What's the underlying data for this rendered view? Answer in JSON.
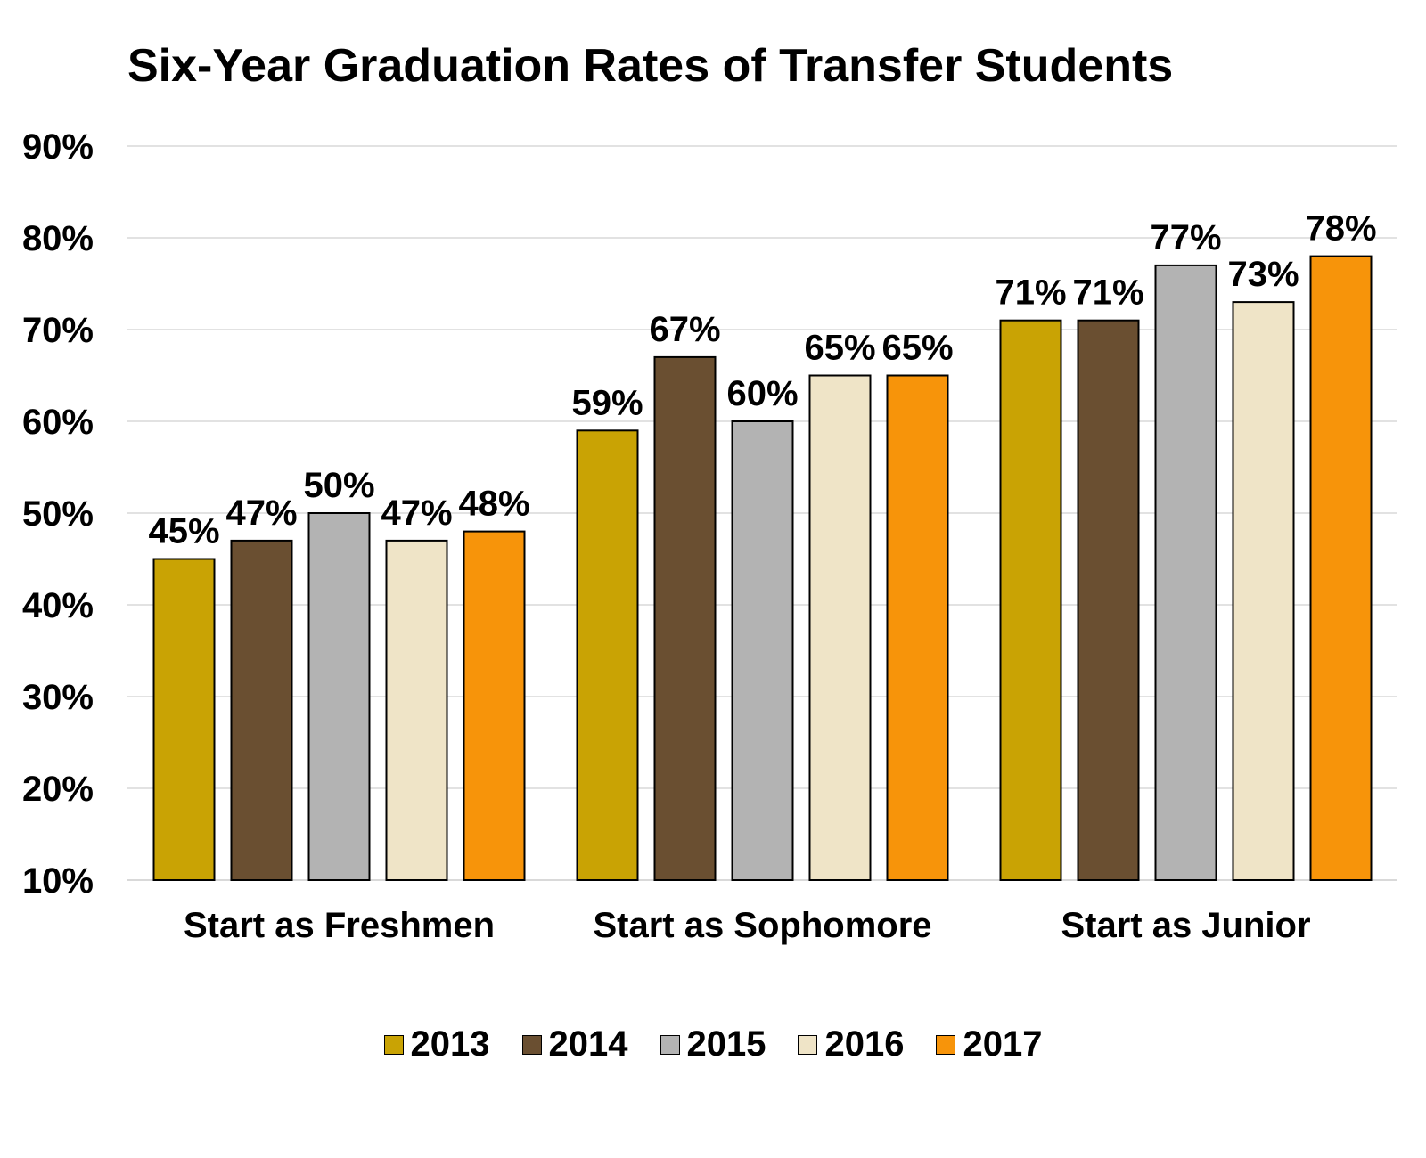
{
  "chart_data": {
    "type": "bar",
    "title": "Six-Year Graduation Rates of Transfer Students",
    "categories": [
      "Start as Freshmen",
      "Start as Sophomore",
      "Start as Junior"
    ],
    "series": [
      {
        "name": "2013",
        "color": "#C9A304",
        "values": [
          45,
          59,
          71
        ],
        "labels": [
          "45%",
          "59%",
          "71%"
        ]
      },
      {
        "name": "2014",
        "color": "#6A4F31",
        "values": [
          47,
          67,
          71
        ],
        "labels": [
          "47%",
          "67%",
          "71%"
        ]
      },
      {
        "name": "2015",
        "color": "#B3B3B3",
        "values": [
          50,
          60,
          77
        ],
        "labels": [
          "50%",
          "60%",
          "77%"
        ]
      },
      {
        "name": "2016",
        "color": "#EFE4C7",
        "values": [
          47,
          65,
          73
        ],
        "labels": [
          "47%",
          "65%",
          "73%"
        ]
      },
      {
        "name": "2017",
        "color": "#F7940A",
        "values": [
          48,
          65,
          78
        ],
        "labels": [
          "48%",
          "65%",
          "78%"
        ]
      }
    ],
    "ylim": [
      10,
      90
    ],
    "yticks": [
      "10%",
      "20%",
      "30%",
      "40%",
      "50%",
      "60%",
      "70%",
      "80%",
      "90%"
    ],
    "grid": true,
    "legend_position": "bottom"
  }
}
